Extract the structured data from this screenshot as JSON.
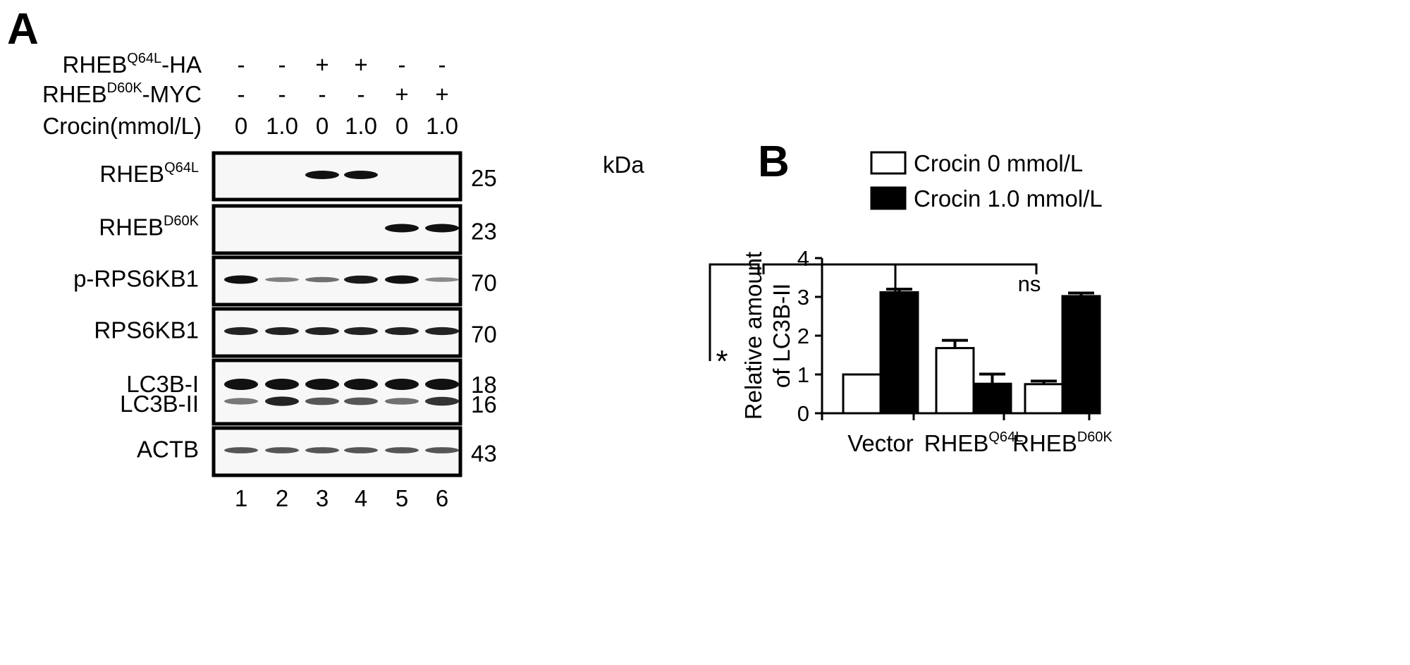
{
  "panel_a": {
    "label": "A",
    "conditions": [
      {
        "name": "RHEB",
        "sup": "Q64L",
        "suffix": "-HA",
        "values": [
          "-",
          "-",
          "+",
          "+",
          "-",
          "-"
        ]
      },
      {
        "name": "RHEB",
        "sup": "D60K",
        "suffix": "-MYC",
        "values": [
          "-",
          "-",
          "-",
          "-",
          "+",
          "+"
        ]
      },
      {
        "name": "Crocin",
        "sup": "",
        "suffix": "(mmol/L)",
        "values": [
          "0",
          "1.0",
          "0",
          "1.0",
          "0",
          "1.0"
        ]
      }
    ],
    "kda_label": "kDa",
    "blots": [
      {
        "name": "RHEB",
        "sup": "Q64L",
        "kda": "25",
        "bands": [
          0,
          0,
          1,
          1,
          0,
          0
        ]
      },
      {
        "name": "RHEB",
        "sup": "D60K",
        "kda": "23",
        "bands": [
          0,
          0,
          0,
          0,
          1,
          1
        ]
      },
      {
        "name": "p-RPS6KB1",
        "sup": "",
        "kda": "70",
        "bands": [
          1.0,
          0.35,
          0.45,
          0.95,
          1.0,
          0.3
        ]
      },
      {
        "name": "RPS6KB1",
        "sup": "",
        "kda": "70",
        "bands": [
          0.9,
          0.9,
          0.9,
          0.9,
          0.9,
          0.9
        ]
      },
      {
        "name": "LC3B-I",
        "sup": "",
        "name2": "LC3B-II",
        "kda": "18",
        "kda2": "16",
        "bands": [
          1,
          1,
          1,
          1,
          1,
          1
        ],
        "bands2": [
          0.4,
          0.9,
          0.6,
          0.6,
          0.45,
          0.8
        ]
      },
      {
        "name": "ACTB",
        "sup": "",
        "kda": "43",
        "bands": [
          0.6,
          0.6,
          0.6,
          0.6,
          0.6,
          0.6
        ]
      }
    ],
    "lanes": [
      "1",
      "2",
      "3",
      "4",
      "5",
      "6"
    ]
  },
  "panel_b": {
    "label": "B"
  },
  "chart_data": {
    "type": "bar",
    "categories": [
      {
        "name": "Vector",
        "sup": ""
      },
      {
        "name": "RHEB",
        "sup": "Q64L"
      },
      {
        "name": "RHEB",
        "sup": "D60K"
      }
    ],
    "series": [
      {
        "name": "Crocin 0 mmol/L",
        "color": "#ffffff",
        "values": [
          1.0,
          1.68,
          0.75
        ],
        "errors": [
          0.0,
          0.2,
          0.08
        ]
      },
      {
        "name": "Crocin 1.0 mmol/L",
        "color": "#000000",
        "values": [
          3.12,
          0.76,
          3.02
        ],
        "errors": [
          0.08,
          0.25,
          0.08
        ]
      }
    ],
    "ylabel": [
      "Relative amount",
      "of LC3B-II"
    ],
    "xlabel": "",
    "ylim": [
      0,
      4
    ],
    "yticks": [
      0,
      1,
      2,
      3,
      4
    ],
    "legend_position": "top",
    "annotations": {
      "star": "*",
      "ns": "ns"
    }
  }
}
